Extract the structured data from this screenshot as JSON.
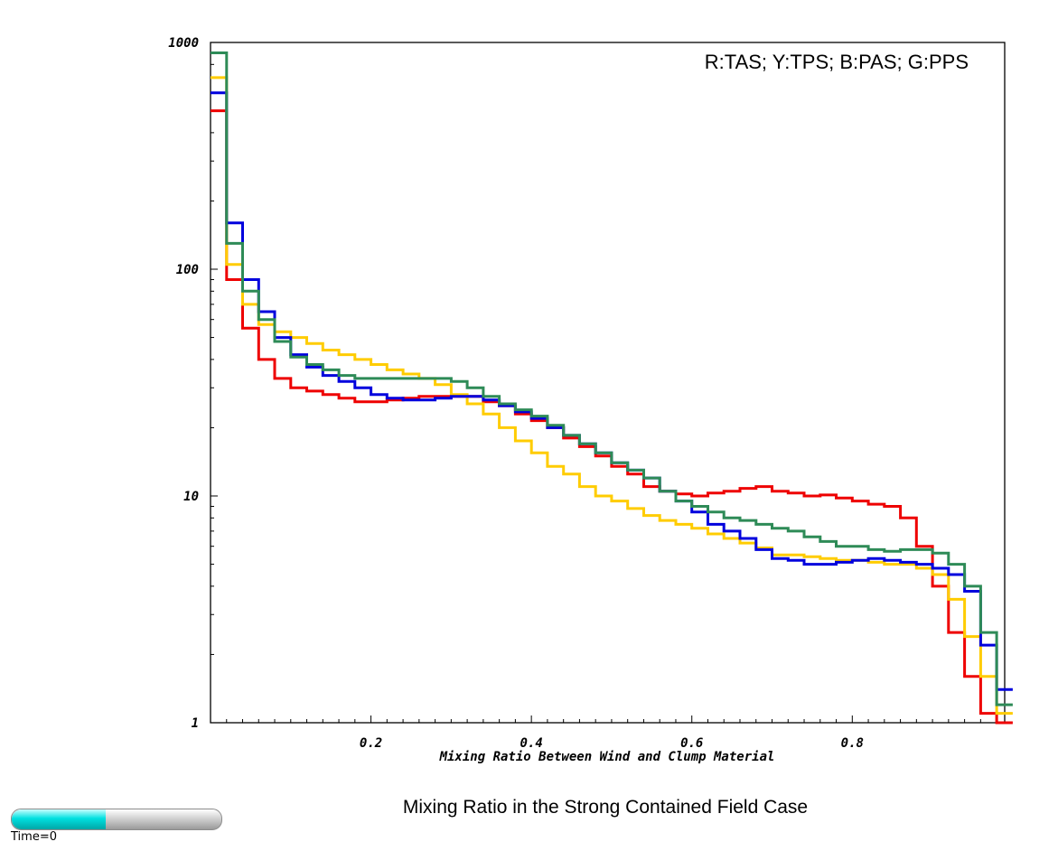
{
  "chart_data": {
    "type": "line",
    "title": "Mixing Ratio in the Strong Contained Field Case",
    "legend_text": "R:TAS; Y:TPS; B:PAS; G:PPS",
    "legend_position": "top-right",
    "xlabel": "Mixing Ratio Between Wind and Clump Material",
    "ylabel": "",
    "xlim": [
      0,
      0.99
    ],
    "ylim": [
      1,
      1000
    ],
    "yscale": "log",
    "step": true,
    "grid": false,
    "x_ticks": [
      "0.2",
      "0.4",
      "0.6",
      "0.8"
    ],
    "y_ticks": [
      "1",
      "10",
      "100",
      "1000"
    ],
    "x": [
      0.01,
      0.03,
      0.05,
      0.07,
      0.09,
      0.11,
      0.13,
      0.15,
      0.17,
      0.19,
      0.21,
      0.23,
      0.25,
      0.27,
      0.29,
      0.31,
      0.33,
      0.35,
      0.37,
      0.39,
      0.41,
      0.43,
      0.45,
      0.47,
      0.49,
      0.51,
      0.53,
      0.55,
      0.57,
      0.59,
      0.61,
      0.63,
      0.65,
      0.67,
      0.69,
      0.71,
      0.73,
      0.75,
      0.77,
      0.79,
      0.81,
      0.83,
      0.85,
      0.87,
      0.89,
      0.91,
      0.93,
      0.95,
      0.97,
      0.99
    ],
    "series": [
      {
        "color": "#ee0000",
        "values": [
          500,
          90,
          55,
          40,
          33,
          30,
          29,
          28,
          27,
          26,
          26,
          26.5,
          27,
          27.5,
          27.5,
          27.5,
          27.5,
          26,
          25,
          23,
          21.5,
          20,
          18,
          16.5,
          15,
          13.5,
          12.5,
          11,
          10.5,
          10.2,
          10,
          10.3,
          10.5,
          10.8,
          11,
          10.5,
          10.3,
          10,
          10.1,
          9.8,
          9.5,
          9.2,
          9,
          8,
          6,
          4,
          2.5,
          1.6,
          1.1,
          1.0
        ]
      },
      {
        "color": "#ffcc00",
        "values": [
          700,
          105,
          70,
          57,
          53,
          50,
          47,
          44,
          42,
          40,
          38,
          36,
          34.5,
          33,
          31,
          28,
          25.5,
          23,
          20,
          17.5,
          15.5,
          13.5,
          12.5,
          11,
          10,
          9.5,
          8.8,
          8.2,
          7.8,
          7.5,
          7.2,
          6.8,
          6.5,
          6.2,
          5.9,
          5.5,
          5.5,
          5.4,
          5.3,
          5.2,
          5.2,
          5.1,
          5.0,
          5.0,
          4.8,
          4.5,
          3.5,
          2.4,
          1.6,
          1.1
        ]
      },
      {
        "color": "#0000dd",
        "values": [
          600,
          160,
          90,
          65,
          50,
          42,
          37,
          34,
          32,
          30,
          28,
          27,
          26.5,
          26.5,
          27,
          27.5,
          27.5,
          26.5,
          25,
          23.5,
          22,
          20,
          18.5,
          17,
          15.5,
          14,
          13,
          12,
          10.5,
          9.5,
          8.5,
          7.5,
          7,
          6.5,
          5.8,
          5.3,
          5.2,
          5.0,
          5.0,
          5.1,
          5.2,
          5.3,
          5.2,
          5.1,
          5.0,
          4.8,
          4.5,
          3.8,
          2.2,
          1.4
        ]
      },
      {
        "color": "#2e8b57",
        "values": [
          900,
          130,
          80,
          60,
          48,
          41,
          38,
          36,
          34,
          33,
          33,
          33,
          33,
          33,
          33,
          32,
          30,
          27.5,
          25.5,
          24,
          22.5,
          20.5,
          18.5,
          17,
          15.5,
          14,
          13,
          12,
          10.5,
          9.5,
          9,
          8.5,
          8,
          7.8,
          7.5,
          7.2,
          7,
          6.6,
          6.3,
          6.0,
          6.0,
          5.8,
          5.7,
          5.8,
          5.8,
          5.6,
          5.0,
          4.0,
          2.5,
          1.2
        ]
      }
    ]
  },
  "time_slider": {
    "label": "Time=0",
    "progress": 0.45
  }
}
